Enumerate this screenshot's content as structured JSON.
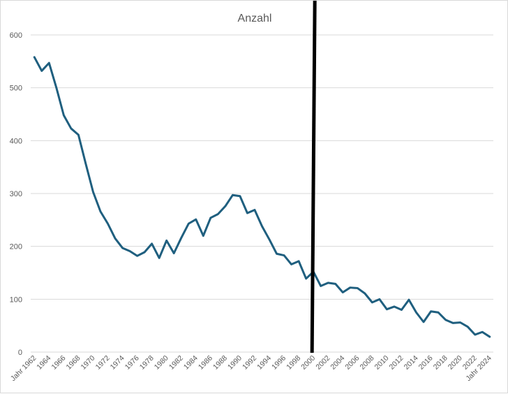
{
  "chart_data": {
    "type": "line",
    "title": "Anzahl",
    "xlabel": "",
    "ylabel": "",
    "ylim": [
      0,
      600
    ],
    "yticks": [
      0,
      100,
      200,
      300,
      400,
      500,
      600
    ],
    "grid": true,
    "legend": "none",
    "categories": [
      "Jahr 1962",
      "1963",
      "1964",
      "1965",
      "1966",
      "1967",
      "1968",
      "1969",
      "1970",
      "1971",
      "1972",
      "1973",
      "1974",
      "1975",
      "1976",
      "1977",
      "1978",
      "1979",
      "1980",
      "1981",
      "1982",
      "1983",
      "1984",
      "1985",
      "1986",
      "1987",
      "1988",
      "1989",
      "1990",
      "1991",
      "1992",
      "1993",
      "1994",
      "1995",
      "1996",
      "1997",
      "1998",
      "1999",
      "2000",
      "2001",
      "2002",
      "2003",
      "2004",
      "2005",
      "2006",
      "2007",
      "2008",
      "2009",
      "2010",
      "2011",
      "2012",
      "2013",
      "2014",
      "2015",
      "2016",
      "2017",
      "2018",
      "2019",
      "2020",
      "2021",
      "2022",
      "2023",
      "Jahr 2024"
    ],
    "tick_labels": [
      "Jahr 1962",
      "1964",
      "1966",
      "1968",
      "1970",
      "1972",
      "1974",
      "1976",
      "1978",
      "1980",
      "1982",
      "1984",
      "1986",
      "1988",
      "1990",
      "1992",
      "1994",
      "1996",
      "1998",
      "2000",
      "2002",
      "2004",
      "2006",
      "2008",
      "2010",
      "2012",
      "2014",
      "2016",
      "2018",
      "2020",
      "2022",
      "Jahr 2024"
    ],
    "series": [
      {
        "values": [
          558,
          532,
          547,
          500,
          448,
          423,
          411,
          356,
          303,
          266,
          243,
          215,
          197,
          191,
          182,
          189,
          205,
          178,
          211,
          187,
          216,
          243,
          251,
          220,
          254,
          261,
          276,
          297,
          295,
          263,
          269,
          238,
          213,
          186,
          183,
          166,
          172,
          139,
          152,
          125,
          131,
          129,
          113,
          122,
          121,
          111,
          94,
          100,
          81,
          86,
          80,
          99,
          75,
          57,
          77,
          75,
          61,
          55,
          56,
          48,
          33,
          38,
          29
        ]
      }
    ],
    "reference_line": {
      "category": "2000",
      "color": "#000000"
    },
    "colors": {
      "line": "#1f5f7f",
      "grid": "#d9d9d9",
      "text": "#595959"
    }
  }
}
